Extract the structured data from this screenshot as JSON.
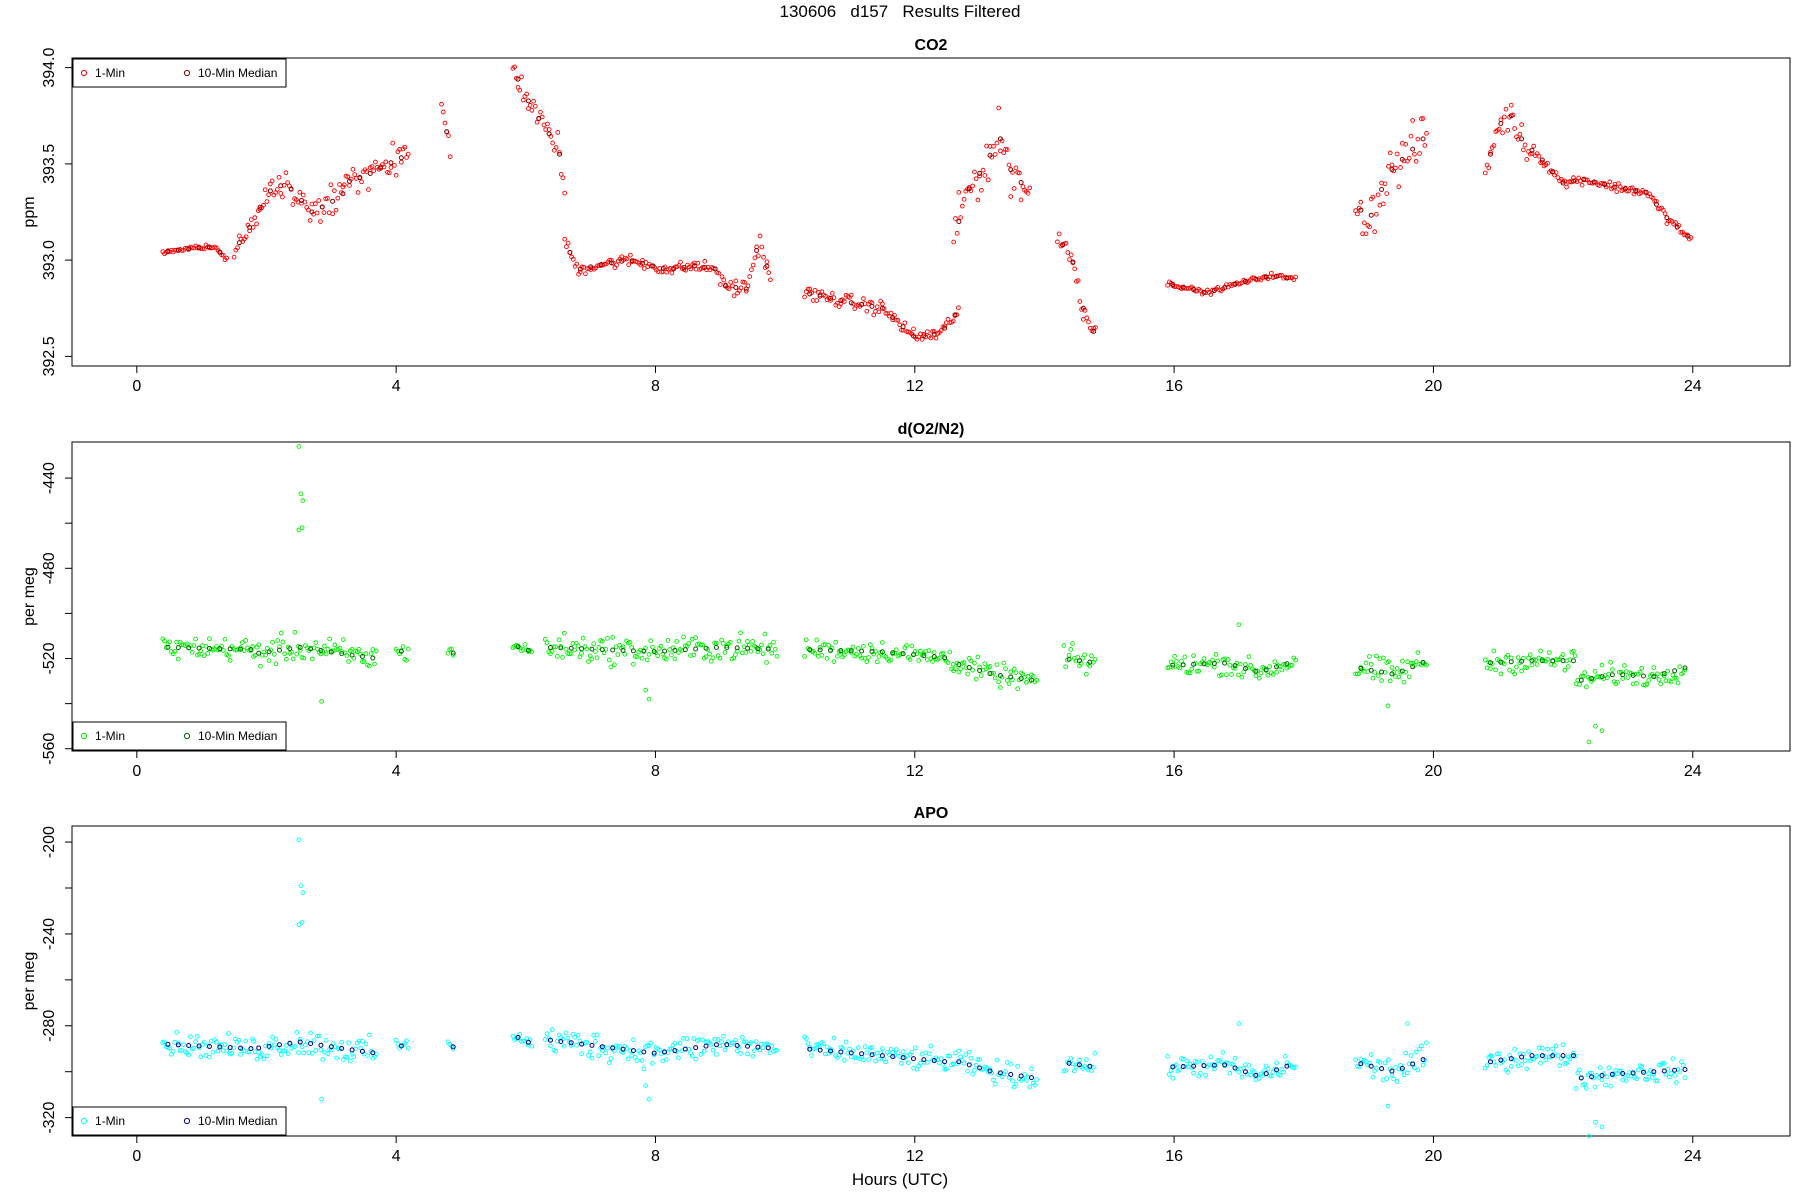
{
  "figure": {
    "title": "130606   d157   Results Filtered",
    "xlabel": "Hours (UTC)"
  },
  "chart_data": [
    {
      "type": "scatter",
      "title": "CO2",
      "ylabel": "ppm",
      "xlim": [
        -1,
        25.5
      ],
      "ylim": [
        392.45,
        394.05
      ],
      "xticks": [
        0,
        4,
        8,
        12,
        16,
        20,
        24
      ],
      "yticks": [
        392.5,
        393.0,
        393.5,
        394.0
      ],
      "ytick_labels": [
        "392.5",
        "393.0",
        "393.5",
        "394.0"
      ],
      "legend": {
        "position": "top-left",
        "entries": [
          "1-Min",
          "10-Min Median"
        ]
      },
      "colors": {
        "1-Min": "#ff0000",
        "10-Min Median": "#8b0000"
      },
      "segments": [
        {
          "x0": 0.4,
          "x1": 1.4,
          "trend": [
            [
              0.4,
              393.04
            ],
            [
              0.8,
              393.06
            ],
            [
              1.2,
              393.07
            ],
            [
              1.4,
              393.0
            ]
          ],
          "noise": 0.01
        },
        {
          "x0": 1.5,
          "x1": 3.2,
          "trend": [
            [
              1.5,
              393.05
            ],
            [
              1.8,
              393.2
            ],
            [
              2.0,
              393.35
            ],
            [
              2.3,
              393.4
            ],
            [
              2.7,
              393.25
            ],
            [
              3.0,
              393.3
            ],
            [
              3.2,
              393.35
            ]
          ],
          "noise": 0.06
        },
        {
          "x0": 3.2,
          "x1": 4.2,
          "trend": [
            [
              3.2,
              393.4
            ],
            [
              3.6,
              393.45
            ],
            [
              4.0,
              393.52
            ],
            [
              4.2,
              393.55
            ]
          ],
          "noise": 0.06
        },
        {
          "x0": 4.7,
          "x1": 4.85,
          "trend": [
            [
              4.7,
              393.8
            ],
            [
              4.85,
              393.55
            ]
          ],
          "noise": 0.05
        },
        {
          "x0": 5.8,
          "x1": 6.6,
          "trend": [
            [
              5.8,
              394.0
            ],
            [
              6.0,
              393.85
            ],
            [
              6.3,
              393.68
            ],
            [
              6.5,
              393.6
            ],
            [
              6.6,
              393.35
            ]
          ],
          "noise": 0.05
        },
        {
          "x0": 6.6,
          "x1": 9.0,
          "trend": [
            [
              6.6,
              393.1
            ],
            [
              6.8,
              392.95
            ],
            [
              7.2,
              392.98
            ],
            [
              7.6,
              393.0
            ],
            [
              8.2,
              392.95
            ],
            [
              8.6,
              392.97
            ],
            [
              9.0,
              392.95
            ]
          ],
          "noise": 0.025
        },
        {
          "x0": 9.0,
          "x1": 9.8,
          "trend": [
            [
              9.0,
              392.87
            ],
            [
              9.4,
              392.85
            ],
            [
              9.6,
              393.1
            ],
            [
              9.8,
              392.88
            ]
          ],
          "noise": 0.04
        },
        {
          "x0": 10.3,
          "x1": 12.7,
          "trend": [
            [
              10.3,
              392.83
            ],
            [
              11.0,
              392.78
            ],
            [
              11.5,
              392.75
            ],
            [
              12.0,
              392.6
            ],
            [
              12.4,
              392.62
            ],
            [
              12.7,
              392.75
            ]
          ],
          "noise": 0.03
        },
        {
          "x0": 12.6,
          "x1": 13.8,
          "trend": [
            [
              12.6,
              393.1
            ],
            [
              12.8,
              393.35
            ],
            [
              13.1,
              393.5
            ],
            [
              13.3,
              393.65
            ],
            [
              13.5,
              393.45
            ],
            [
              13.8,
              393.35
            ]
          ],
          "noise": 0.1
        },
        {
          "x0": 14.2,
          "x1": 14.8,
          "trend": [
            [
              14.2,
              393.1
            ],
            [
              14.4,
              393.05
            ],
            [
              14.6,
              392.75
            ],
            [
              14.8,
              392.6
            ]
          ],
          "noise": 0.05
        },
        {
          "x0": 15.9,
          "x1": 17.9,
          "trend": [
            [
              15.9,
              392.88
            ],
            [
              16.5,
              392.83
            ],
            [
              17.0,
              392.88
            ],
            [
              17.5,
              392.92
            ],
            [
              17.9,
              392.9
            ]
          ],
          "noise": 0.01
        },
        {
          "x0": 18.8,
          "x1": 19.9,
          "trend": [
            [
              18.8,
              393.3
            ],
            [
              19.0,
              393.2
            ],
            [
              19.3,
              393.45
            ],
            [
              19.6,
              393.55
            ],
            [
              19.9,
              393.65
            ]
          ],
          "noise": 0.1
        },
        {
          "x0": 20.8,
          "x1": 21.6,
          "trend": [
            [
              20.8,
              393.45
            ],
            [
              21.0,
              393.7
            ],
            [
              21.2,
              393.75
            ],
            [
              21.4,
              393.6
            ],
            [
              21.6,
              393.55
            ]
          ],
          "noise": 0.06
        },
        {
          "x0": 21.6,
          "x1": 24.0,
          "trend": [
            [
              21.6,
              393.55
            ],
            [
              22.0,
              393.4
            ],
            [
              22.3,
              393.42
            ],
            [
              22.8,
              393.38
            ],
            [
              23.3,
              393.35
            ],
            [
              23.6,
              393.22
            ],
            [
              24.0,
              393.1
            ]
          ],
          "noise": 0.02
        }
      ]
    },
    {
      "type": "scatter",
      "title": "d(O2/N2)",
      "ylabel": "per meg",
      "xlim": [
        -1,
        25.5
      ],
      "ylim": [
        -561,
        -424
      ],
      "xticks": [
        0,
        4,
        8,
        12,
        16,
        20,
        24
      ],
      "yticks": [
        -560,
        -520,
        -480,
        -440
      ],
      "ytick_labels": [
        "-560",
        "-520",
        "-480",
        "-440"
      ],
      "minor_yticks": [
        -540,
        -500,
        -460
      ],
      "legend": {
        "position": "bottom-left",
        "entries": [
          "1-Min",
          "10-Min Median"
        ]
      },
      "colors": {
        "1-Min": "#00ee00",
        "10-Min Median": "#006400"
      },
      "segments": [
        {
          "x0": 0.4,
          "x1": 1.8,
          "trend": [
            [
              0.4,
              -515
            ],
            [
              1.8,
              -516
            ]
          ],
          "noise": 4
        },
        {
          "x0": 1.8,
          "x1": 3.7,
          "trend": [
            [
              1.8,
              -518
            ],
            [
              2.5,
              -515
            ],
            [
              3.2,
              -518
            ],
            [
              3.7,
              -520
            ]
          ],
          "noise": 5
        },
        {
          "x0": 4.0,
          "x1": 4.2,
          "trend": [
            [
              4.0,
              -516
            ],
            [
              4.2,
              -518
            ]
          ],
          "noise": 3
        },
        {
          "x0": 4.8,
          "x1": 4.9,
          "trend": [
            [
              4.8,
              -516
            ],
            [
              4.9,
              -518
            ]
          ],
          "noise": 2
        },
        {
          "x0": 5.8,
          "x1": 6.1,
          "trend": [
            [
              5.8,
              -514
            ],
            [
              6.1,
              -517
            ]
          ],
          "noise": 2
        },
        {
          "x0": 6.3,
          "x1": 9.9,
          "trend": [
            [
              6.3,
              -515
            ],
            [
              8.0,
              -517
            ],
            [
              9.0,
              -515
            ],
            [
              9.9,
              -516
            ]
          ],
          "noise": 5
        },
        {
          "x0": 10.3,
          "x1": 12.6,
          "trend": [
            [
              10.3,
              -516
            ],
            [
              11.5,
              -517
            ],
            [
              12.6,
              -520
            ]
          ],
          "noise": 4
        },
        {
          "x0": 12.6,
          "x1": 13.9,
          "trend": [
            [
              12.6,
              -522
            ],
            [
              13.2,
              -527
            ],
            [
              13.9,
              -530
            ]
          ],
          "noise": 4
        },
        {
          "x0": 14.3,
          "x1": 14.8,
          "trend": [
            [
              14.3,
              -520
            ],
            [
              14.8,
              -522
            ]
          ],
          "noise": 5
        },
        {
          "x0": 15.9,
          "x1": 17.9,
          "trend": [
            [
              15.9,
              -523
            ],
            [
              16.8,
              -522
            ],
            [
              17.3,
              -526
            ],
            [
              17.9,
              -521
            ]
          ],
          "noise": 4
        },
        {
          "x0": 18.8,
          "x1": 19.9,
          "trend": [
            [
              18.8,
              -524
            ],
            [
              19.4,
              -527
            ],
            [
              19.9,
              -521
            ]
          ],
          "noise": 5
        },
        {
          "x0": 20.8,
          "x1": 22.2,
          "trend": [
            [
              20.8,
              -522
            ],
            [
              21.5,
              -521
            ],
            [
              22.2,
              -521
            ]
          ],
          "noise": 4
        },
        {
          "x0": 22.2,
          "x1": 23.9,
          "trend": [
            [
              22.2,
              -530
            ],
            [
              22.8,
              -527
            ],
            [
              23.4,
              -528
            ],
            [
              23.9,
              -524
            ]
          ],
          "noise": 4
        }
      ],
      "extra_points": [
        [
          2.5,
          -426
        ],
        [
          2.53,
          -447
        ],
        [
          2.56,
          -450
        ],
        [
          2.5,
          -463
        ],
        [
          2.55,
          -462
        ],
        [
          2.85,
          -539
        ],
        [
          7.9,
          -538
        ],
        [
          7.85,
          -534
        ],
        [
          19.3,
          -541
        ],
        [
          22.4,
          -557
        ],
        [
          22.5,
          -550
        ],
        [
          22.6,
          -552
        ],
        [
          17.0,
          -505
        ]
      ]
    },
    {
      "type": "scatter",
      "title": "APO",
      "ylabel": "per meg",
      "xlim": [
        -1,
        25.5
      ],
      "ylim": [
        -328,
        -193
      ],
      "xticks": [
        0,
        4,
        8,
        12,
        16,
        20,
        24
      ],
      "yticks": [
        -320,
        -280,
        -240,
        -200
      ],
      "ytick_labels": [
        "-320",
        "-280",
        "-240",
        "-200"
      ],
      "minor_yticks": [
        -300,
        -260,
        -220
      ],
      "legend": {
        "position": "bottom-left",
        "entries": [
          "1-Min",
          "10-Min Median"
        ]
      },
      "colors": {
        "1-Min": "#00ffff",
        "10-Min Median": "#00008b"
      },
      "segments": [
        {
          "x0": 0.4,
          "x1": 1.8,
          "trend": [
            [
              0.4,
              -288
            ],
            [
              1.8,
              -290
            ]
          ],
          "noise": 4
        },
        {
          "x0": 1.8,
          "x1": 3.7,
          "trend": [
            [
              1.8,
              -290
            ],
            [
              2.5,
              -287
            ],
            [
              3.2,
              -290
            ],
            [
              3.7,
              -292
            ]
          ],
          "noise": 5
        },
        {
          "x0": 4.0,
          "x1": 4.2,
          "trend": [
            [
              4.0,
              -288
            ],
            [
              4.2,
              -290
            ]
          ],
          "noise": 3
        },
        {
          "x0": 4.8,
          "x1": 4.9,
          "trend": [
            [
              4.8,
              -286
            ],
            [
              4.9,
              -290
            ]
          ],
          "noise": 2
        },
        {
          "x0": 5.8,
          "x1": 6.1,
          "trend": [
            [
              5.8,
              -284
            ],
            [
              6.1,
              -288
            ]
          ],
          "noise": 2
        },
        {
          "x0": 6.3,
          "x1": 9.9,
          "trend": [
            [
              6.3,
              -286
            ],
            [
              8.0,
              -292
            ],
            [
              9.0,
              -288
            ],
            [
              9.9,
              -290
            ]
          ],
          "noise": 5
        },
        {
          "x0": 10.3,
          "x1": 12.6,
          "trend": [
            [
              10.3,
              -290
            ],
            [
              11.5,
              -293
            ],
            [
              12.6,
              -296
            ]
          ],
          "noise": 4
        },
        {
          "x0": 12.6,
          "x1": 13.9,
          "trend": [
            [
              12.6,
              -295
            ],
            [
              13.2,
              -300
            ],
            [
              13.9,
              -303
            ]
          ],
          "noise": 4
        },
        {
          "x0": 14.3,
          "x1": 14.8,
          "trend": [
            [
              14.3,
              -296
            ],
            [
              14.8,
              -298
            ]
          ],
          "noise": 4
        },
        {
          "x0": 15.9,
          "x1": 17.9,
          "trend": [
            [
              15.9,
              -298
            ],
            [
              16.8,
              -297
            ],
            [
              17.3,
              -302
            ],
            [
              17.9,
              -296
            ]
          ],
          "noise": 4
        },
        {
          "x0": 18.8,
          "x1": 19.9,
          "trend": [
            [
              18.8,
              -296
            ],
            [
              19.4,
              -300
            ],
            [
              19.9,
              -294
            ]
          ],
          "noise": 5
        },
        {
          "x0": 20.8,
          "x1": 22.2,
          "trend": [
            [
              20.8,
              -296
            ],
            [
              21.5,
              -293
            ],
            [
              22.2,
              -293
            ]
          ],
          "noise": 4
        },
        {
          "x0": 22.2,
          "x1": 23.9,
          "trend": [
            [
              22.2,
              -303
            ],
            [
              22.8,
              -301
            ],
            [
              23.4,
              -300
            ],
            [
              23.9,
              -299
            ]
          ],
          "noise": 4
        }
      ],
      "extra_points": [
        [
          2.5,
          -199
        ],
        [
          2.53,
          -219
        ],
        [
          2.56,
          -222
        ],
        [
          2.5,
          -236
        ],
        [
          2.55,
          -235
        ],
        [
          2.85,
          -312
        ],
        [
          7.9,
          -312
        ],
        [
          7.85,
          -306
        ],
        [
          19.3,
          -315
        ],
        [
          22.4,
          -328
        ],
        [
          22.5,
          -322
        ],
        [
          22.6,
          -324
        ],
        [
          17.0,
          -279
        ],
        [
          19.6,
          -279
        ]
      ]
    }
  ]
}
